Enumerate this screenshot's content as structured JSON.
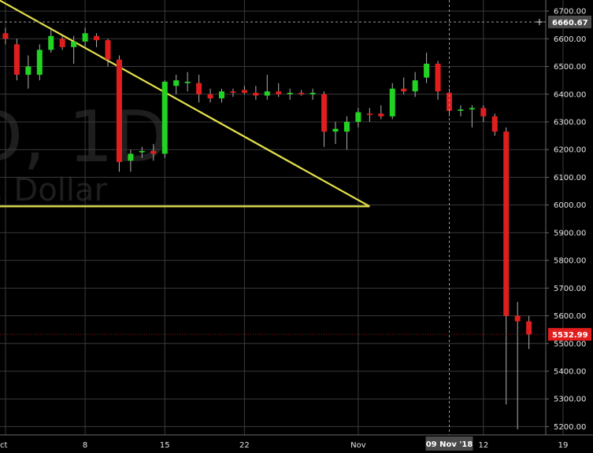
{
  "chart_data": {
    "type": "candlestick",
    "watermark": {
      "line1": "D, 1D",
      "line2": ". Dollar"
    },
    "y_axis": {
      "ticks": [
        "6700.00",
        "6600.00",
        "6500.00",
        "6400.00",
        "6300.00",
        "6200.00",
        "6100.00",
        "6000.00",
        "5900.00",
        "5800.00",
        "5700.00",
        "5600.00",
        "5500.00",
        "5400.00",
        "5300.00",
        "5200.00"
      ],
      "range": [
        5170,
        6740
      ],
      "side": "right"
    },
    "x_axis": {
      "ticks": [
        {
          "label": "ct",
          "day": 1
        },
        {
          "label": "8",
          "day": 8
        },
        {
          "label": "15",
          "day": 15
        },
        {
          "label": "22",
          "day": 22
        },
        {
          "label": "Nov",
          "day": 32
        },
        {
          "label": "12",
          "day": 43
        },
        {
          "label": "19",
          "day": 50
        }
      ],
      "range": [
        1,
        51
      ],
      "day_unit": "days from Oct 1 2018"
    },
    "grid": true,
    "crosshair": {
      "price_label": "6660.67",
      "price": 6660.67,
      "date_label": "09 Nov '18",
      "day": 40
    },
    "last_price": {
      "label": "5532.99",
      "value": 5532.99
    },
    "candles": [
      {
        "day": 1,
        "open": 6620,
        "high": 6640,
        "low": 6580,
        "close": 6600
      },
      {
        "day": 2,
        "open": 6580,
        "high": 6600,
        "low": 6450,
        "close": 6470
      },
      {
        "day": 3,
        "open": 6470,
        "high": 6540,
        "low": 6420,
        "close": 6500
      },
      {
        "day": 4,
        "open": 6470,
        "high": 6580,
        "low": 6450,
        "close": 6560
      },
      {
        "day": 5,
        "open": 6560,
        "high": 6640,
        "low": 6550,
        "close": 6610
      },
      {
        "day": 6,
        "open": 6600,
        "high": 6610,
        "low": 6560,
        "close": 6570
      },
      {
        "day": 7,
        "open": 6570,
        "high": 6610,
        "low": 6510,
        "close": 6590
      },
      {
        "day": 8,
        "open": 6590,
        "high": 6640,
        "low": 6570,
        "close": 6620
      },
      {
        "day": 9,
        "open": 6610,
        "high": 6620,
        "low": 6570,
        "close": 6595
      },
      {
        "day": 10,
        "open": 6595,
        "high": 6600,
        "low": 6500,
        "close": 6525
      },
      {
        "day": 11,
        "open": 6525,
        "high": 6540,
        "low": 6120,
        "close": 6155
      },
      {
        "day": 12,
        "open": 6160,
        "high": 6200,
        "low": 6120,
        "close": 6185
      },
      {
        "day": 13,
        "open": 6190,
        "high": 6210,
        "low": 6170,
        "close": 6195
      },
      {
        "day": 14,
        "open": 6195,
        "high": 6220,
        "low": 6160,
        "close": 6185
      },
      {
        "day": 15,
        "open": 6185,
        "high": 6450,
        "low": 6170,
        "close": 6445
      },
      {
        "day": 16,
        "open": 6430,
        "high": 6470,
        "low": 6400,
        "close": 6450
      },
      {
        "day": 17,
        "open": 6440,
        "high": 6480,
        "low": 6410,
        "close": 6445
      },
      {
        "day": 18,
        "open": 6440,
        "high": 6470,
        "low": 6370,
        "close": 6400
      },
      {
        "day": 19,
        "open": 6400,
        "high": 6420,
        "low": 6370,
        "close": 6385
      },
      {
        "day": 20,
        "open": 6385,
        "high": 6420,
        "low": 6370,
        "close": 6410
      },
      {
        "day": 21,
        "open": 6410,
        "high": 6420,
        "low": 6390,
        "close": 6405
      },
      {
        "day": 22,
        "open": 6415,
        "high": 6430,
        "low": 6400,
        "close": 6405
      },
      {
        "day": 23,
        "open": 6405,
        "high": 6430,
        "low": 6380,
        "close": 6395
      },
      {
        "day": 24,
        "open": 6395,
        "high": 6470,
        "low": 6380,
        "close": 6410
      },
      {
        "day": 25,
        "open": 6410,
        "high": 6440,
        "low": 6390,
        "close": 6400
      },
      {
        "day": 26,
        "open": 6400,
        "high": 6420,
        "low": 6380,
        "close": 6405
      },
      {
        "day": 27,
        "open": 6405,
        "high": 6415,
        "low": 6395,
        "close": 6400
      },
      {
        "day": 28,
        "open": 6400,
        "high": 6420,
        "low": 6380,
        "close": 6405
      },
      {
        "day": 29,
        "open": 6400,
        "high": 6410,
        "low": 6210,
        "close": 6265
      },
      {
        "day": 30,
        "open": 6265,
        "high": 6300,
        "low": 6220,
        "close": 6275
      },
      {
        "day": 31,
        "open": 6265,
        "high": 6320,
        "low": 6200,
        "close": 6300
      },
      {
        "day": 32,
        "open": 6300,
        "high": 6350,
        "low": 6280,
        "close": 6335
      },
      {
        "day": 33,
        "open": 6330,
        "high": 6350,
        "low": 6300,
        "close": 6325
      },
      {
        "day": 34,
        "open": 6330,
        "high": 6360,
        "low": 6310,
        "close": 6320
      },
      {
        "day": 35,
        "open": 6320,
        "high": 6440,
        "low": 6310,
        "close": 6420
      },
      {
        "day": 36,
        "open": 6420,
        "high": 6460,
        "low": 6400,
        "close": 6410
      },
      {
        "day": 37,
        "open": 6410,
        "high": 6480,
        "low": 6390,
        "close": 6450
      },
      {
        "day": 38,
        "open": 6460,
        "high": 6550,
        "low": 6440,
        "close": 6510
      },
      {
        "day": 39,
        "open": 6510,
        "high": 6520,
        "low": 6380,
        "close": 6410
      },
      {
        "day": 40,
        "open": 6405,
        "high": 6420,
        "low": 6320,
        "close": 6340
      },
      {
        "day": 41,
        "open": 6340,
        "high": 6360,
        "low": 6320,
        "close": 6345
      },
      {
        "day": 42,
        "open": 6345,
        "high": 6360,
        "low": 6280,
        "close": 6350
      },
      {
        "day": 43,
        "open": 6350,
        "high": 6360,
        "low": 6300,
        "close": 6320
      },
      {
        "day": 44,
        "open": 6320,
        "high": 6330,
        "low": 6250,
        "close": 6265
      },
      {
        "day": 45,
        "open": 6265,
        "high": 6280,
        "low": 5280,
        "close": 5600
      },
      {
        "day": 46,
        "open": 5600,
        "high": 5650,
        "low": 5190,
        "close": 5580
      },
      {
        "day": 47,
        "open": 5580,
        "high": 5600,
        "low": 5480,
        "close": 5533
      }
    ],
    "drawings": [
      {
        "type": "trendline",
        "color": "#e6e04a",
        "from": {
          "day": 0,
          "price": 6750
        },
        "to": {
          "day": 33,
          "price": 5995
        }
      },
      {
        "type": "horizontal",
        "color": "#e6e04a",
        "from": {
          "day": 0,
          "price": 5995
        },
        "to": {
          "day": 33,
          "price": 5995
        }
      }
    ],
    "colors": {
      "up": "#22d322",
      "down": "#e01e1e",
      "background": "#000000",
      "grid": "#3a3a3a",
      "text": "#e6e6e6",
      "last_price_tag": "#e01e1e",
      "crosshair_tag": "#4a4a4a"
    }
  }
}
